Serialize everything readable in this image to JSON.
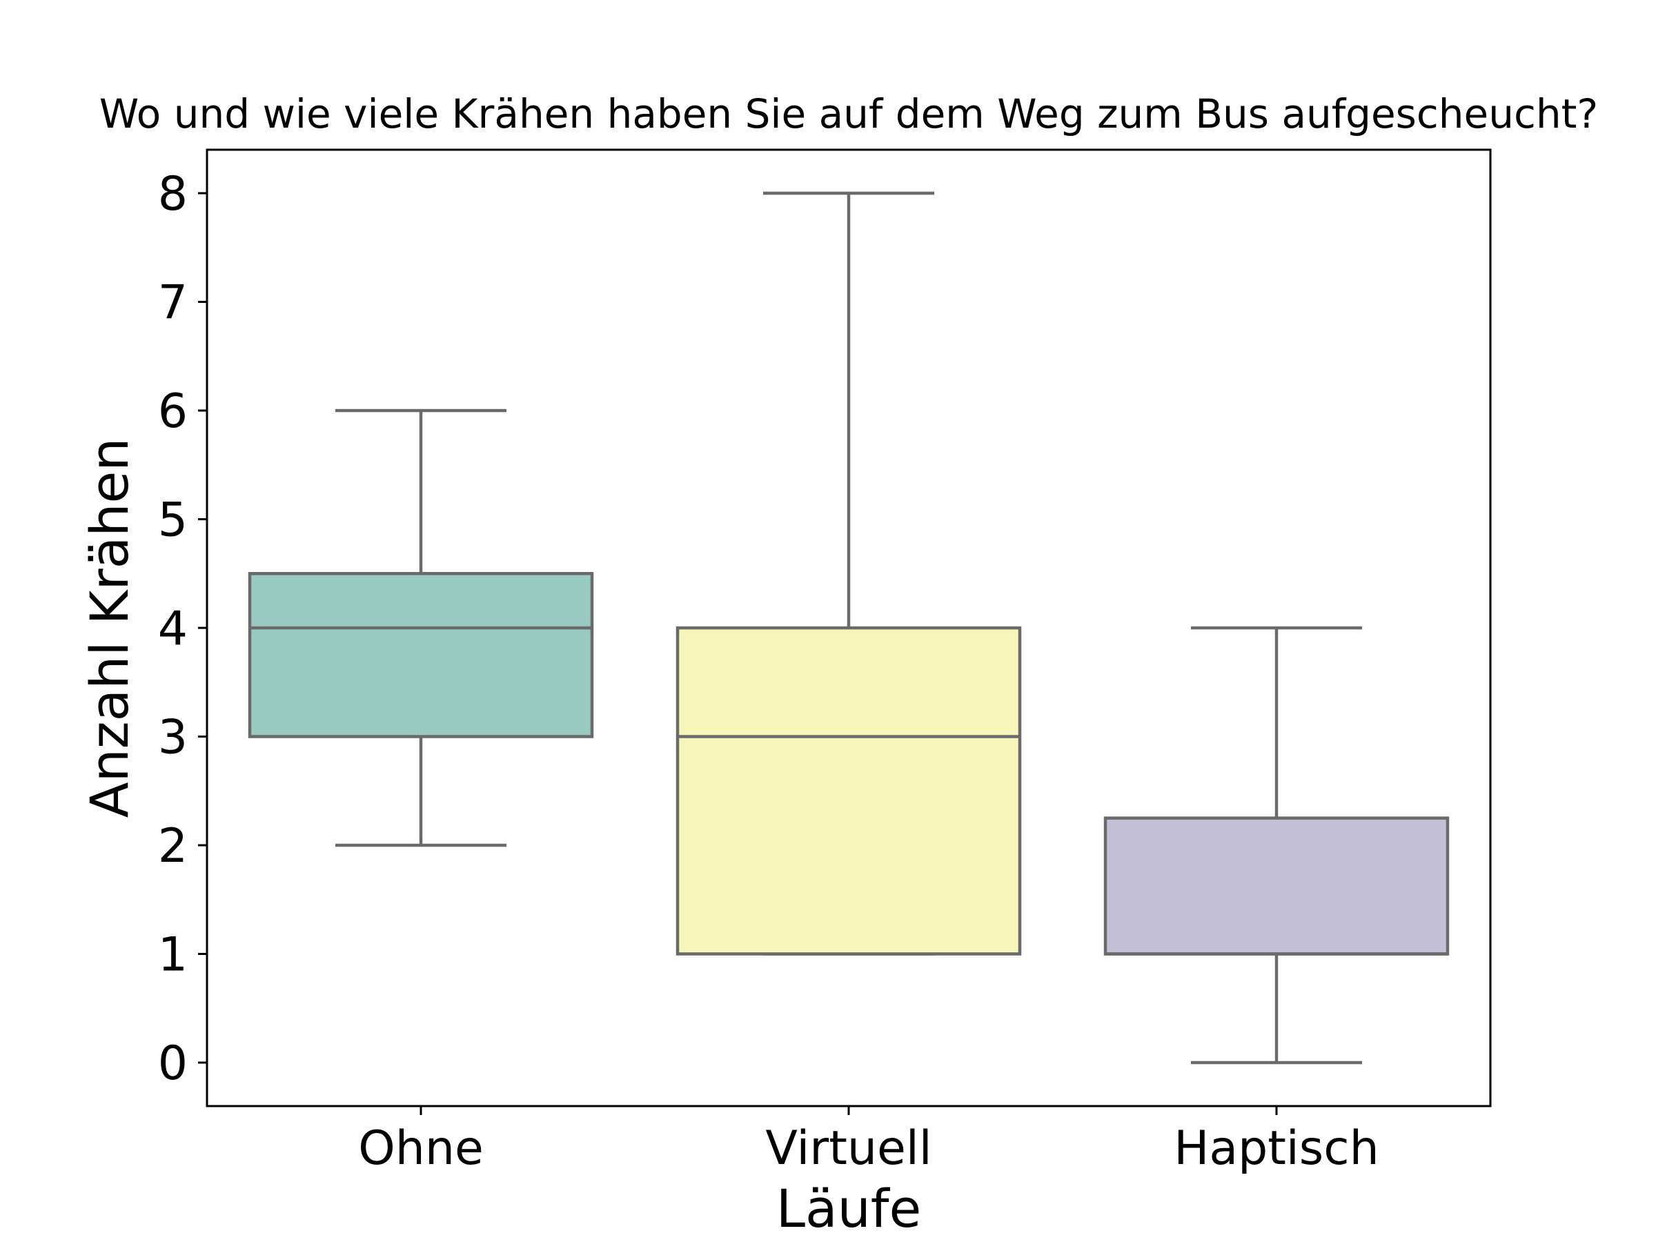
{
  "chart_data": {
    "type": "box",
    "title": "Wo und wie viele Krähen haben Sie auf dem Weg zum Bus aufgescheucht?",
    "xlabel": "Läufe",
    "ylabel": "Anzahl Krähen",
    "ylim": [
      -0.4,
      8.4
    ],
    "yticks": [
      "0",
      "1",
      "2",
      "3",
      "4",
      "5",
      "6",
      "7",
      "8"
    ],
    "grid": false,
    "categories": [
      "Ohne",
      "Virtuell",
      "Haptisch"
    ],
    "boxes": [
      {
        "category": "Ohne",
        "whisker_low": 2,
        "q1": 3,
        "median": 4,
        "q3": 4.5,
        "whisker_high": 6,
        "color": "#99cac1"
      },
      {
        "category": "Virtuell",
        "whisker_low": 1,
        "q1": 1,
        "median": 3,
        "q3": 4,
        "whisker_high": 8,
        "color": "#f6f6bb"
      },
      {
        "category": "Haptisch",
        "whisker_low": 0,
        "q1": 1,
        "median": 1,
        "q3": 2.25,
        "whisker_high": 4,
        "color": "#c2bfd6"
      }
    ],
    "line_color": "#6a6a6a"
  }
}
